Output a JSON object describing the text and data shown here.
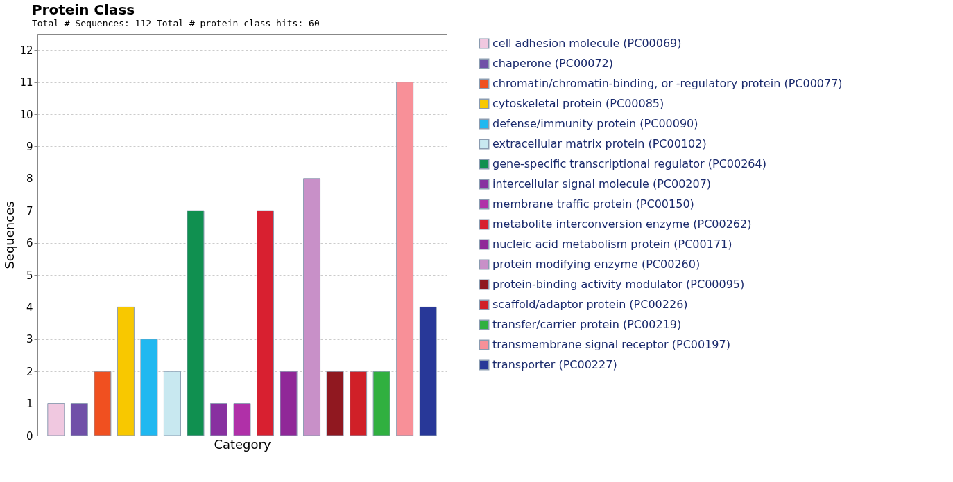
{
  "chart_data": {
    "type": "bar",
    "title": "Protein Class",
    "subtitle": "Total # Sequences: 112    Total # protein class hits: 60",
    "xlabel": "Category",
    "ylabel": "Sequences",
    "categories": [
      null,
      null,
      null,
      null,
      null,
      null,
      null,
      null,
      null,
      null,
      null,
      null,
      null,
      null,
      null,
      null,
      null
    ],
    "ylim": [
      0,
      12.5
    ],
    "yticks": [
      0,
      1,
      2,
      3,
      4,
      5,
      6,
      7,
      8,
      9,
      10,
      11,
      12
    ],
    "grid": "y",
    "legend": "right",
    "tick_labels": "y",
    "series": [
      {
        "name": "cell adhesion molecule (PC00069)",
        "color": "#f0c8e0",
        "values": [
          1,
          null,
          null,
          null,
          null,
          null,
          null,
          null,
          null,
          null,
          null,
          null,
          null,
          null,
          null,
          null,
          null
        ]
      },
      {
        "name": "chaperone (PC00072)",
        "color": "#7050a8",
        "values": [
          null,
          1,
          null,
          null,
          null,
          null,
          null,
          null,
          null,
          null,
          null,
          null,
          null,
          null,
          null,
          null,
          null
        ]
      },
      {
        "name": "chromatin/chromatin-binding, or -regulatory protein (PC00077)",
        "color": "#f05020",
        "values": [
          null,
          null,
          2,
          null,
          null,
          null,
          null,
          null,
          null,
          null,
          null,
          null,
          null,
          null,
          null,
          null,
          null
        ]
      },
      {
        "name": "cytoskeletal protein (PC00085)",
        "color": "#f8c800",
        "values": [
          null,
          null,
          null,
          4,
          null,
          null,
          null,
          null,
          null,
          null,
          null,
          null,
          null,
          null,
          null,
          null,
          null
        ]
      },
      {
        "name": "defense/immunity protein (PC00090)",
        "color": "#20b8f0",
        "values": [
          null,
          null,
          null,
          null,
          3,
          null,
          null,
          null,
          null,
          null,
          null,
          null,
          null,
          null,
          null,
          null,
          null
        ]
      },
      {
        "name": "extracellular matrix protein (PC00102)",
        "color": "#c8e8f0",
        "values": [
          null,
          null,
          null,
          null,
          null,
          2,
          null,
          null,
          null,
          null,
          null,
          null,
          null,
          null,
          null,
          null,
          null
        ]
      },
      {
        "name": "gene-specific transcriptional regulator (PC00264)",
        "color": "#109050",
        "values": [
          null,
          null,
          null,
          null,
          null,
          null,
          7,
          null,
          null,
          null,
          null,
          null,
          null,
          null,
          null,
          null,
          null
        ]
      },
      {
        "name": "intercellular signal molecule (PC00207)",
        "color": "#8830a0",
        "values": [
          null,
          null,
          null,
          null,
          null,
          null,
          null,
          1,
          null,
          null,
          null,
          null,
          null,
          null,
          null,
          null,
          null
        ]
      },
      {
        "name": "membrane traffic protein (PC00150)",
        "color": "#b030a8",
        "values": [
          null,
          null,
          null,
          null,
          null,
          null,
          null,
          null,
          1,
          null,
          null,
          null,
          null,
          null,
          null,
          null,
          null
        ]
      },
      {
        "name": "metabolite interconversion enzyme (PC00262)",
        "color": "#d82030",
        "values": [
          null,
          null,
          null,
          null,
          null,
          null,
          null,
          null,
          null,
          7,
          null,
          null,
          null,
          null,
          null,
          null,
          null
        ]
      },
      {
        "name": "nucleic acid metabolism protein (PC00171)",
        "color": "#902898",
        "values": [
          null,
          null,
          null,
          null,
          null,
          null,
          null,
          null,
          null,
          null,
          2,
          null,
          null,
          null,
          null,
          null,
          null
        ]
      },
      {
        "name": "protein modifying enzyme (PC00260)",
        "color": "#c890c8",
        "values": [
          null,
          null,
          null,
          null,
          null,
          null,
          null,
          null,
          null,
          null,
          null,
          8,
          null,
          null,
          null,
          null,
          null
        ]
      },
      {
        "name": "protein-binding activity modulator (PC00095)",
        "color": "#901820",
        "values": [
          null,
          null,
          null,
          null,
          null,
          null,
          null,
          null,
          null,
          null,
          null,
          null,
          2,
          null,
          null,
          null,
          null
        ]
      },
      {
        "name": "scaffold/adaptor protein (PC00226)",
        "color": "#d02028",
        "values": [
          null,
          null,
          null,
          null,
          null,
          null,
          null,
          null,
          null,
          null,
          null,
          null,
          null,
          2,
          null,
          null,
          null
        ]
      },
      {
        "name": "transfer/carrier protein (PC00219)",
        "color": "#30b040",
        "values": [
          null,
          null,
          null,
          null,
          null,
          null,
          null,
          null,
          null,
          null,
          null,
          null,
          null,
          null,
          2,
          null,
          null
        ]
      },
      {
        "name": "transmembrane signal receptor (PC00197)",
        "color": "#f89098",
        "values": [
          null,
          null,
          null,
          null,
          null,
          null,
          null,
          null,
          null,
          null,
          null,
          null,
          null,
          null,
          null,
          11,
          null
        ]
      },
      {
        "name": "transporter (PC00227)",
        "color": "#283898",
        "values": [
          null,
          null,
          null,
          null,
          null,
          null,
          null,
          null,
          null,
          null,
          null,
          null,
          null,
          null,
          null,
          null,
          4
        ]
      }
    ]
  }
}
